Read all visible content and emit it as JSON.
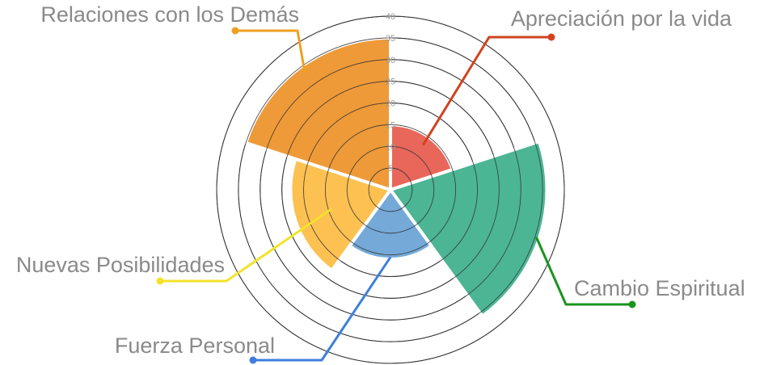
{
  "chart_data": {
    "type": "polar-area",
    "title": "",
    "categories": [
      "Apreciación por la vida",
      "Cambio Espiritual",
      "Fuerza Personal",
      "Nuevas Posibilidades",
      "Relaciones con los Demás"
    ],
    "values": [
      15,
      36,
      16,
      23,
      35
    ],
    "colors": [
      "#e8675a",
      "#4cb594",
      "#74a9d8",
      "#fdc152",
      "#ef9a38"
    ],
    "leader_colors": [
      "#d0431f",
      "#1a9420",
      "#3f7fdc",
      "#f4e22a",
      "#f0a020"
    ],
    "rlim": [
      0,
      40
    ],
    "r_ticks": [
      5,
      10,
      15,
      20,
      25,
      30,
      35,
      40
    ],
    "tick_labels": [
      "5",
      "10",
      "15",
      "20",
      "25",
      "30",
      "35",
      "40"
    ],
    "grid": true,
    "legend": "none"
  }
}
